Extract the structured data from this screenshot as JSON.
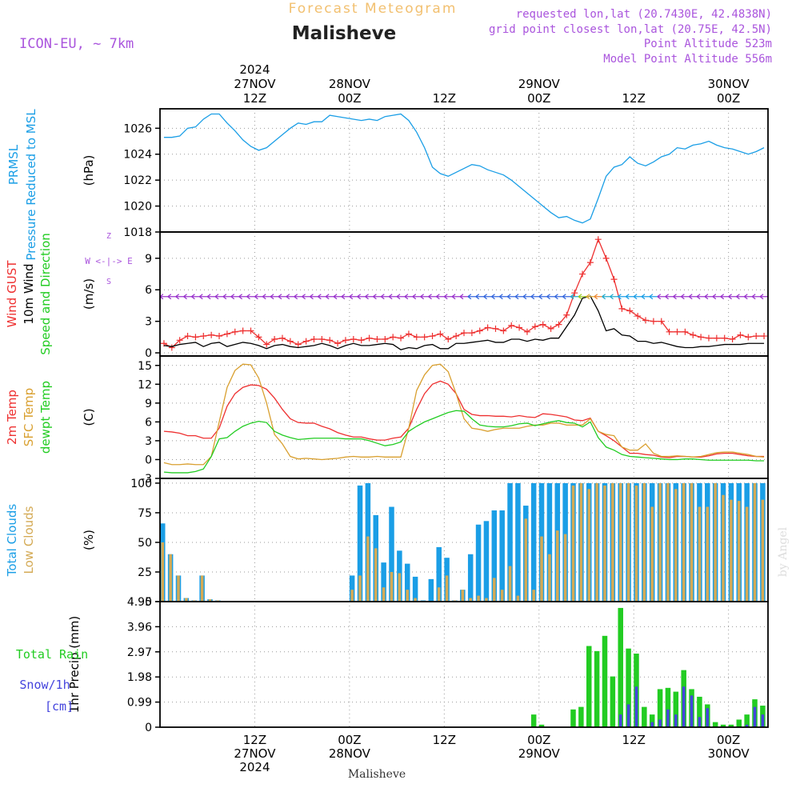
{
  "header": {
    "forecast_label": "Forecast Meteogram",
    "title": "Malisheve",
    "model": "ICON-EU, ~ 7km",
    "requested": "requested lon,lat (20.7430E, 42.4838N)",
    "grid_point": "grid point closest lon,lat (20.75E, 42.5N)",
    "point_altitude": "Point Altitude 523m",
    "model_altitude": "Model Point Altitude 556m"
  },
  "colors": {
    "pressure": "#1a9ee6",
    "gust": "#ee3030",
    "wind": "#000000",
    "temp2m": "#ee3030",
    "sfc": "#d9a030",
    "dewpt": "#22cc22",
    "total_cloud": "#1a9ee6",
    "low_cloud": "#d4aa55",
    "rain": "#22cc22",
    "snow": "#4444dd",
    "header_orange": "#f2c070",
    "purple": "#aa55dd"
  },
  "time_axis": {
    "top_labels": [
      {
        "h": 12,
        "lines": [
          "2024",
          "27NOV",
          "12Z"
        ]
      },
      {
        "h": 24,
        "lines": [
          "28NOV",
          "00Z"
        ]
      },
      {
        "h": 36,
        "lines": [
          "12Z"
        ]
      },
      {
        "h": 48,
        "lines": [
          "29NOV",
          "00Z"
        ]
      },
      {
        "h": 60,
        "lines": [
          "12Z"
        ]
      },
      {
        "h": 72,
        "lines": [
          "30NOV",
          "00Z"
        ]
      }
    ],
    "bottom_labels": [
      {
        "h": 12,
        "lines": [
          "12Z",
          "27NOV",
          "2024"
        ]
      },
      {
        "h": 24,
        "lines": [
          "00Z",
          "28NOV"
        ]
      },
      {
        "h": 36,
        "lines": [
          "12Z"
        ]
      },
      {
        "h": 48,
        "lines": [
          "00Z",
          "29NOV"
        ]
      },
      {
        "h": 60,
        "lines": [
          "12Z"
        ]
      },
      {
        "h": 72,
        "lines": [
          "00Z",
          "30NOV"
        ]
      }
    ],
    "footer_label": "Malisheve",
    "watermark": "by Angel"
  },
  "chart_data": [
    {
      "type": "line",
      "id": "pressure",
      "title": "PRMSL Pressure Reduced to MSL",
      "ylabel_lines": [
        "PRMSL",
        "Pressure Reduced to MSL"
      ],
      "unit": "(hPa)",
      "ylim": [
        1018,
        1027.5
      ],
      "yticks": [
        "1018",
        "1020",
        "1022",
        "1024",
        "1026"
      ],
      "x_start_hour": 0.5,
      "x_step_hours": 1,
      "values": [
        1025.3,
        1025.3,
        1025.4,
        1026.0,
        1026.1,
        1026.7,
        1027.1,
        1027.1,
        1026.4,
        1025.8,
        1025.1,
        1024.6,
        1024.3,
        1024.5,
        1025.0,
        1025.5,
        1026.0,
        1026.4,
        1026.3,
        1026.5,
        1026.5,
        1027.0,
        1026.9,
        1026.8,
        1026.7,
        1026.6,
        1026.7,
        1026.6,
        1026.9,
        1027.0,
        1027.1,
        1026.6,
        1025.7,
        1024.5,
        1023.0,
        1022.5,
        1022.3,
        1022.6,
        1022.9,
        1023.2,
        1023.1,
        1022.8,
        1022.6,
        1022.4,
        1022.0,
        1021.5,
        1021.0,
        1020.5,
        1020.0,
        1019.5,
        1019.1,
        1019.2,
        1018.9,
        1018.7,
        1019.0,
        1020.6,
        1022.3,
        1023.0,
        1023.2,
        1023.8,
        1023.3,
        1023.1,
        1023.4,
        1023.8,
        1024.0,
        1024.5,
        1024.4,
        1024.7,
        1024.8,
        1025.0,
        1024.7,
        1024.5,
        1024.4,
        1024.2,
        1024.0,
        1024.2,
        1024.5
      ]
    },
    {
      "type": "line",
      "id": "wind",
      "title": "Wind GUST / 10m Wind Speed and Direction",
      "ylabel_parts": [
        {
          "text": "Wind GUST",
          "color": "gust"
        },
        {
          "text": "10m Wind",
          "color": "wind"
        },
        {
          "text": "Speed and Direction",
          "color": "rain"
        }
      ],
      "unit": "(m/s)",
      "compass": {
        "z_top": "Z",
        "we": "W <-|-> E",
        "s_bottom": "S"
      },
      "ylim": [
        -0.3,
        11.5
      ],
      "yticks": [
        "0",
        "3",
        "6",
        "9"
      ],
      "x_start_hour": 0.5,
      "x_step_hours": 1,
      "series": [
        {
          "name": "Wind GUST",
          "color": "gust",
          "values": [
            0.9,
            0.5,
            1.2,
            1.6,
            1.5,
            1.6,
            1.7,
            1.6,
            1.8,
            2.0,
            2.1,
            2.1,
            1.5,
            0.8,
            1.3,
            1.4,
            1.1,
            0.8,
            1.1,
            1.3,
            1.3,
            1.2,
            0.9,
            1.2,
            1.3,
            1.2,
            1.4,
            1.3,
            1.3,
            1.5,
            1.4,
            1.8,
            1.5,
            1.5,
            1.6,
            1.8,
            1.3,
            1.6,
            1.9,
            1.9,
            2.1,
            2.4,
            2.3,
            2.1,
            2.6,
            2.4,
            2.0,
            2.5,
            2.7,
            2.3,
            2.7,
            3.6,
            5.7,
            7.5,
            8.6,
            10.8,
            9.0,
            7.0,
            4.2,
            4.0,
            3.5,
            3.1,
            3.0,
            3.0,
            2.0,
            2.0,
            2.0,
            1.7,
            1.5,
            1.4,
            1.4,
            1.4,
            1.3,
            1.7,
            1.5,
            1.6,
            1.6
          ]
        },
        {
          "name": "10m Wind",
          "color": "wind",
          "values": [
            0.7,
            0.6,
            0.8,
            0.9,
            1.0,
            0.6,
            0.9,
            1.0,
            0.6,
            0.8,
            1.0,
            0.9,
            0.7,
            0.4,
            0.7,
            0.8,
            0.6,
            0.5,
            0.6,
            0.7,
            0.9,
            0.7,
            0.4,
            0.7,
            0.9,
            0.7,
            0.7,
            0.8,
            0.9,
            0.8,
            0.3,
            0.5,
            0.4,
            0.7,
            0.8,
            0.4,
            0.4,
            0.9,
            0.9,
            1.0,
            1.1,
            1.2,
            1.0,
            1.0,
            1.3,
            1.3,
            1.1,
            1.3,
            1.2,
            1.4,
            1.4,
            2.5,
            3.6,
            5.2,
            5.4,
            4.0,
            2.1,
            2.3,
            1.7,
            1.6,
            1.1,
            1.1,
            0.9,
            1.0,
            0.8,
            0.6,
            0.5,
            0.5,
            0.6,
            0.6,
            0.7,
            0.8,
            0.8,
            0.8,
            0.9,
            0.9,
            0.9
          ]
        }
      ]
    },
    {
      "type": "line",
      "id": "temperature",
      "title": "2m Temp / SFC Temp / dewpt Temp",
      "ylabel_parts": [
        {
          "text": "2m Temp",
          "color": "temp2m"
        },
        {
          "text": "SFC Temp",
          "color": "sfc"
        },
        {
          "text": "dewpt Temp",
          "color": "dewpt"
        }
      ],
      "unit": "(C)",
      "ylim": [
        -3,
        16.5
      ],
      "yticks": [
        "-3",
        "0",
        "3",
        "6",
        "9",
        "12",
        "15"
      ],
      "x_start_hour": 0.5,
      "x_step_hours": 1,
      "series": [
        {
          "name": "2m Temp",
          "color": "temp2m",
          "values": [
            4.5,
            4.4,
            4.2,
            3.8,
            3.8,
            3.4,
            3.4,
            5.0,
            8.5,
            10.5,
            11.5,
            11.9,
            11.8,
            11.2,
            9.8,
            8.0,
            6.5,
            5.9,
            5.8,
            5.8,
            5.3,
            4.9,
            4.3,
            3.9,
            3.6,
            3.6,
            3.3,
            3.1,
            3.1,
            3.4,
            3.6,
            5.0,
            8.0,
            10.5,
            12.0,
            12.5,
            12.0,
            10.5,
            8.0,
            7.2,
            7.0,
            7.0,
            6.9,
            6.9,
            6.8,
            7.0,
            6.8,
            6.7,
            7.3,
            7.2,
            7.0,
            6.8,
            6.3,
            6.2,
            6.6,
            4.5,
            3.8,
            3.0,
            2.0,
            1.0,
            1.0,
            0.8,
            0.7,
            0.4,
            0.3,
            0.5,
            0.5,
            0.4,
            0.4,
            0.6,
            0.9,
            1.0,
            1.0,
            0.8,
            0.6,
            0.5,
            0.5
          ]
        },
        {
          "name": "SFC Temp",
          "color": "sfc",
          "values": [
            -0.5,
            -0.8,
            -0.8,
            -0.7,
            -0.8,
            -0.8,
            0.5,
            6.0,
            11.5,
            14.2,
            15.2,
            15.1,
            13.0,
            9.0,
            4.0,
            2.5,
            0.5,
            0.1,
            0.2,
            0.1,
            0.0,
            0.1,
            0.2,
            0.4,
            0.5,
            0.4,
            0.4,
            0.5,
            0.4,
            0.4,
            0.4,
            5.0,
            11.0,
            13.5,
            15.0,
            15.2,
            14.0,
            10.5,
            6.5,
            5.0,
            4.8,
            4.5,
            4.8,
            5.0,
            5.0,
            5.0,
            5.3,
            5.5,
            5.5,
            5.8,
            5.8,
            5.5,
            5.5,
            5.5,
            6.5,
            4.5,
            4.0,
            3.8,
            2.0,
            1.5,
            1.5,
            2.5,
            1.0,
            0.5,
            0.5,
            0.6,
            0.5,
            0.4,
            0.5,
            0.8,
            1.1,
            1.2,
            1.2,
            1.0,
            0.8,
            0.5,
            0.4
          ]
        },
        {
          "name": "dewpt Temp",
          "color": "dewpt",
          "values": [
            -2.0,
            -2.1,
            -2.1,
            -2.1,
            -1.9,
            -1.5,
            0.5,
            3.3,
            3.5,
            4.5,
            5.3,
            5.8,
            6.1,
            5.9,
            4.5,
            3.9,
            3.5,
            3.2,
            3.3,
            3.4,
            3.4,
            3.4,
            3.4,
            3.3,
            3.3,
            3.3,
            3.0,
            2.6,
            2.2,
            2.4,
            2.8,
            4.5,
            5.3,
            6.0,
            6.5,
            7.0,
            7.5,
            7.8,
            7.7,
            6.5,
            5.5,
            5.3,
            5.2,
            5.2,
            5.4,
            5.7,
            5.8,
            5.4,
            5.7,
            6.0,
            6.2,
            5.9,
            5.8,
            5.2,
            6.0,
            3.5,
            2.0,
            1.5,
            0.8,
            0.5,
            0.4,
            0.3,
            0.2,
            0.1,
            0.0,
            0.0,
            0.1,
            0.1,
            0.0,
            -0.1,
            -0.1,
            -0.1,
            -0.1,
            -0.1,
            -0.1,
            -0.2,
            -0.2
          ]
        }
      ]
    },
    {
      "type": "bar",
      "id": "clouds",
      "title": "Total Clouds / Low Clouds",
      "ylabel_parts": [
        {
          "text": "Total Clouds",
          "color": "total_cloud"
        },
        {
          "text": "Low Clouds",
          "color": "low_cloud"
        }
      ],
      "unit": "(%)",
      "ylim": [
        0,
        104
      ],
      "yticks": [
        "0",
        "25",
        "50",
        "75",
        "100"
      ],
      "x_start_hour": 0,
      "x_step_hours": 1,
      "series": [
        {
          "name": "Total Clouds",
          "color": "total_cloud",
          "values": [
            66,
            40,
            22,
            3,
            1,
            22,
            2,
            1,
            0,
            0,
            0,
            0,
            0,
            0,
            0,
            0,
            0,
            0,
            0,
            0,
            0,
            0,
            0,
            0,
            22,
            98,
            100,
            73,
            33,
            80,
            43,
            32,
            21,
            1,
            19,
            46,
            37,
            1,
            10,
            40,
            65,
            68,
            77,
            77,
            100,
            100,
            81,
            100,
            100,
            100,
            100,
            100,
            100,
            100,
            100,
            100,
            100,
            100,
            100,
            100,
            100,
            100,
            100,
            100,
            100,
            100,
            100,
            100,
            100,
            100,
            100,
            100,
            100,
            100,
            100,
            100,
            100
          ]
        },
        {
          "name": "Low Clouds",
          "color": "low_cloud",
          "values": [
            50,
            40,
            22,
            3,
            1,
            22,
            2,
            1,
            0,
            0,
            0,
            0,
            0,
            0,
            0,
            0,
            0,
            0,
            0,
            0,
            0,
            0,
            0,
            0,
            10,
            22,
            55,
            45,
            12,
            25,
            24,
            10,
            3,
            0,
            0,
            12,
            22,
            1,
            10,
            3,
            5,
            3,
            20,
            10,
            30,
            5,
            70,
            10,
            55,
            40,
            60,
            57,
            98,
            100,
            95,
            100,
            98,
            100,
            100,
            100,
            98,
            100,
            80,
            100,
            100,
            95,
            100,
            100,
            80,
            80,
            100,
            90,
            86,
            85,
            80,
            100,
            86
          ]
        }
      ]
    },
    {
      "type": "bar",
      "id": "precip",
      "title": "Total Rain / Snow/1h",
      "ylabel_parts": [
        {
          "text": "Total  Rain",
          "color": "rain"
        },
        {
          "text": "Snow/1h",
          "color": "snow"
        },
        {
          "text": "[cm]",
          "color": "snow"
        }
      ],
      "unit": "1hr Precip (mm)",
      "ylim": [
        0,
        4.95
      ],
      "yticks": [
        "0",
        "0.99",
        "1.98",
        "2.97",
        "3.96",
        "4.95"
      ],
      "x_start_hour": 0,
      "x_step_hours": 1,
      "series": [
        {
          "name": "Total Rain",
          "color": "rain",
          "values": [
            0,
            0,
            0,
            0,
            0,
            0,
            0,
            0,
            0,
            0,
            0,
            0,
            0,
            0,
            0,
            0,
            0,
            0,
            0,
            0,
            0,
            0,
            0,
            0,
            0,
            0,
            0,
            0,
            0,
            0,
            0,
            0,
            0,
            0,
            0,
            0,
            0,
            0,
            0,
            0,
            0,
            0,
            0,
            0,
            0,
            0,
            0,
            0.5,
            0.1,
            0,
            0,
            0,
            0.7,
            0.8,
            3.2,
            3.0,
            3.6,
            2.0,
            4.7,
            3.1,
            2.9,
            0.8,
            0.5,
            1.5,
            1.55,
            1.4,
            2.25,
            1.5,
            1.2,
            0.9,
            0.2,
            0.1,
            0.1,
            0.3,
            0.5,
            1.1,
            0.85
          ]
        },
        {
          "name": "Snow/1h",
          "color": "snow",
          "values": [
            0,
            0,
            0,
            0,
            0,
            0,
            0,
            0,
            0,
            0,
            0,
            0,
            0,
            0,
            0,
            0,
            0,
            0,
            0,
            0,
            0,
            0,
            0,
            0,
            0,
            0,
            0,
            0,
            0,
            0,
            0,
            0,
            0,
            0,
            0,
            0,
            0,
            0,
            0,
            0,
            0,
            0,
            0,
            0,
            0,
            0,
            0,
            0,
            0,
            0,
            0,
            0,
            0,
            0,
            0,
            0,
            0,
            0,
            0.5,
            0.9,
            1.6,
            0,
            0.2,
            0.3,
            0.7,
            0.5,
            1.6,
            1.25,
            0.4,
            0.75,
            0,
            0,
            0,
            0,
            0.1,
            0.8,
            0.5
          ]
        }
      ]
    }
  ]
}
